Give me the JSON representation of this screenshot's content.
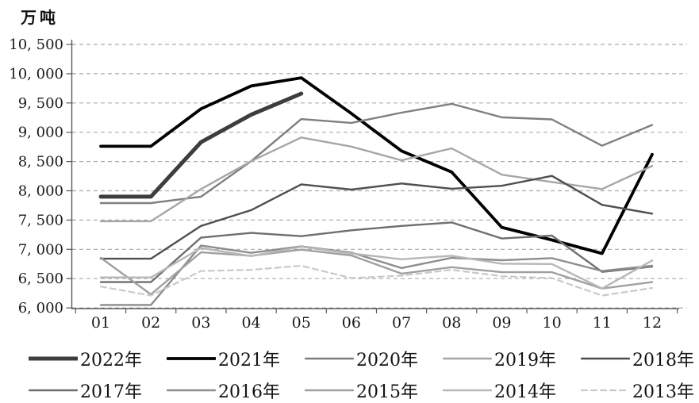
{
  "chart_data": {
    "type": "line",
    "title": "",
    "ylabel": "万吨",
    "xlabel": "",
    "x": [
      "01",
      "02",
      "03",
      "04",
      "05",
      "06",
      "07",
      "08",
      "09",
      "10",
      "11",
      "12"
    ],
    "ylim": [
      6000,
      10500
    ],
    "ytick_step": 500,
    "yticks": [
      {
        "value": 10500,
        "label": "10, 500"
      },
      {
        "value": 10000,
        "label": "10, 000"
      },
      {
        "value": 9500,
        "label": "9, 500"
      },
      {
        "value": 9000,
        "label": "9, 000"
      },
      {
        "value": 8500,
        "label": "8, 500"
      },
      {
        "value": 8000,
        "label": "8, 000"
      },
      {
        "value": 7500,
        "label": "7, 500"
      },
      {
        "value": 7000,
        "label": "7, 000"
      },
      {
        "value": 6500,
        "label": "6, 500"
      },
      {
        "value": 6000,
        "label": "6, 000"
      }
    ],
    "grid": "horizontal-dashed",
    "legend_position": "bottom-two-rows",
    "axis_color": "#595959",
    "grid_color": "#ababab",
    "series": [
      {
        "name": "2022年",
        "color": "#3d3d3d",
        "width": 5,
        "dash": null,
        "values": [
          7900,
          7900,
          8830,
          9300,
          9660,
          null,
          null,
          null,
          null,
          null,
          null,
          null
        ]
      },
      {
        "name": "2021年",
        "color": "#000000",
        "width": 3.8,
        "dash": null,
        "values": [
          8760,
          8760,
          9400,
          9790,
          9930,
          9320,
          8680,
          8320,
          7375,
          7160,
          6930,
          8620
        ]
      },
      {
        "name": "2020年",
        "color": "#7f7f7f",
        "width": 2.4,
        "dash": null,
        "values": [
          7790,
          7790,
          7900,
          8505,
          9225,
          9160,
          9335,
          9485,
          9255,
          9220,
          8770,
          9125
        ]
      },
      {
        "name": "2019年",
        "color": "#a6a6a6",
        "width": 2.4,
        "dash": null,
        "values": [
          7480,
          7480,
          8030,
          8505,
          8910,
          8755,
          8520,
          8725,
          8275,
          8150,
          8030,
          8425
        ]
      },
      {
        "name": "2018年",
        "color": "#4f4f4f",
        "width": 2.4,
        "dash": null,
        "values": [
          6840,
          6840,
          7400,
          7670,
          8110,
          8020,
          8125,
          8035,
          8085,
          8255,
          7760,
          7610
        ]
      },
      {
        "name": "2017年",
        "color": "#6e6e6e",
        "width": 2.4,
        "dash": null,
        "values": [
          6440,
          6440,
          7200,
          7280,
          7225,
          7325,
          7400,
          7460,
          7185,
          7235,
          6615,
          6705
        ]
      },
      {
        "name": "2016年",
        "color": "#8c8c8c",
        "width": 2.4,
        "dash": null,
        "values": [
          6050,
          6050,
          7065,
          6940,
          7050,
          6945,
          6680,
          6855,
          6815,
          6850,
          6630,
          6720
        ]
      },
      {
        "name": "2015年",
        "color": "#a0a0a0",
        "width": 2.4,
        "dash": null,
        "values": [
          6855,
          6230,
          6950,
          6890,
          6995,
          6895,
          6585,
          6695,
          6610,
          6610,
          6330,
          6440
        ]
      },
      {
        "name": "2014年",
        "color": "#b7b7b7",
        "width": 2.4,
        "dash": null,
        "values": [
          6520,
          6520,
          7025,
          6885,
          7045,
          6930,
          6830,
          6890,
          6755,
          6750,
          6330,
          6810
        ]
      },
      {
        "name": "2013年",
        "color": "#c9c9c9",
        "width": 2.2,
        "dash": "7 5",
        "values": [
          6365,
          6210,
          6630,
          6650,
          6720,
          6510,
          6550,
          6650,
          6540,
          6510,
          6210,
          6340
        ]
      }
    ]
  }
}
